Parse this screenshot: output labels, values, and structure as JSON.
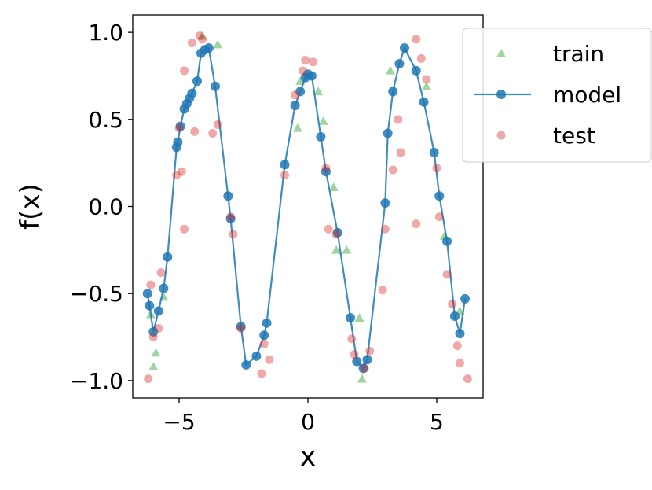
{
  "chart_data": {
    "type": "scatter",
    "title": "",
    "xlabel": "x",
    "ylabel": "f(x)",
    "xlim": [
      -6.8,
      6.8
    ],
    "ylim": [
      -1.1,
      1.1
    ],
    "xticks": [
      -5,
      0,
      5
    ],
    "xtick_labels": [
      "−5",
      "0",
      "5"
    ],
    "yticks": [
      1.0,
      0.5,
      0.0,
      -0.5,
      -1.0
    ],
    "ytick_labels": [
      "1.0",
      "0.5",
      "0.0",
      "−0.5",
      "−1.0"
    ],
    "grid": false,
    "legend_position": "top-right",
    "series": [
      {
        "name": "train",
        "kind": "scatter",
        "marker": "triangle",
        "color": "#2ca02c",
        "points": [
          [
            -6.1,
            -0.62
          ],
          [
            -5.9,
            -0.84
          ],
          [
            -6.0,
            -0.92
          ],
          [
            -5.6,
            -0.52
          ],
          [
            -4.1,
            0.98
          ],
          [
            -3.5,
            0.93
          ],
          [
            -0.4,
            0.45
          ],
          [
            -0.3,
            0.72
          ],
          [
            0.4,
            0.66
          ],
          [
            0.6,
            0.49
          ],
          [
            1.0,
            0.11
          ],
          [
            1.1,
            -0.25
          ],
          [
            1.5,
            -0.25
          ],
          [
            2.0,
            -0.64
          ],
          [
            2.1,
            -0.99
          ],
          [
            3.2,
            0.78
          ],
          [
            4.6,
            0.69
          ],
          [
            5.3,
            -0.17
          ],
          [
            5.9,
            -0.6
          ]
        ]
      },
      {
        "name": "model",
        "kind": "line",
        "marker": "circle",
        "color": "#1f77b4",
        "points": [
          [
            -6.23,
            -0.5
          ],
          [
            -6.15,
            -0.57
          ],
          [
            -6.0,
            -0.72
          ],
          [
            -5.8,
            -0.6
          ],
          [
            -5.6,
            -0.47
          ],
          [
            -5.45,
            -0.29
          ],
          [
            -5.1,
            0.34
          ],
          [
            -5.05,
            0.37
          ],
          [
            -4.95,
            0.46
          ],
          [
            -4.8,
            0.56
          ],
          [
            -4.7,
            0.59
          ],
          [
            -4.6,
            0.62
          ],
          [
            -4.5,
            0.65
          ],
          [
            -4.3,
            0.72
          ],
          [
            -4.15,
            0.88
          ],
          [
            -4.0,
            0.9
          ],
          [
            -3.85,
            0.91
          ],
          [
            -3.6,
            0.69
          ],
          [
            -3.1,
            0.06
          ],
          [
            -3.0,
            -0.07
          ],
          [
            -2.6,
            -0.69
          ],
          [
            -2.4,
            -0.91
          ],
          [
            -2.0,
            -0.86
          ],
          [
            -1.7,
            -0.74
          ],
          [
            -1.6,
            -0.67
          ],
          [
            -0.9,
            0.24
          ],
          [
            -0.5,
            0.58
          ],
          [
            -0.3,
            0.66
          ],
          [
            -0.1,
            0.74
          ],
          [
            0.0,
            0.76
          ],
          [
            0.15,
            0.75
          ],
          [
            0.5,
            0.4
          ],
          [
            0.7,
            0.2
          ],
          [
            1.15,
            -0.15
          ],
          [
            1.65,
            -0.64
          ],
          [
            1.9,
            -0.89
          ],
          [
            2.15,
            -0.93
          ],
          [
            2.3,
            -0.88
          ],
          [
            3.0,
            0.02
          ],
          [
            3.1,
            0.42
          ],
          [
            3.3,
            0.66
          ],
          [
            3.55,
            0.82
          ],
          [
            3.75,
            0.91
          ],
          [
            4.2,
            0.78
          ],
          [
            4.5,
            0.6
          ],
          [
            4.9,
            0.31
          ],
          [
            5.1,
            0.06
          ],
          [
            5.4,
            -0.2
          ],
          [
            5.7,
            -0.63
          ],
          [
            5.9,
            -0.73
          ],
          [
            6.1,
            -0.53
          ]
        ]
      },
      {
        "name": "test",
        "kind": "scatter",
        "marker": "circle",
        "color": "#d62728",
        "points": [
          [
            -6.2,
            -0.99
          ],
          [
            -6.1,
            -0.45
          ],
          [
            -6.0,
            -0.75
          ],
          [
            -5.8,
            -0.7
          ],
          [
            -5.7,
            -0.38
          ],
          [
            -5.1,
            0.18
          ],
          [
            -5.0,
            0.45
          ],
          [
            -4.9,
            0.2
          ],
          [
            -4.8,
            -0.13
          ],
          [
            -4.8,
            0.78
          ],
          [
            -4.5,
            0.94
          ],
          [
            -4.4,
            0.43
          ],
          [
            -4.2,
            0.98
          ],
          [
            -4.1,
            0.96
          ],
          [
            -3.7,
            0.42
          ],
          [
            -3.5,
            0.47
          ],
          [
            -3.0,
            -0.06
          ],
          [
            -2.9,
            -0.16
          ],
          [
            -2.6,
            -0.7
          ],
          [
            -1.8,
            -0.96
          ],
          [
            -1.7,
            -0.79
          ],
          [
            -1.5,
            -0.88
          ],
          [
            -0.9,
            0.18
          ],
          [
            -0.5,
            0.64
          ],
          [
            -0.2,
            0.78
          ],
          [
            -0.1,
            0.84
          ],
          [
            0.2,
            0.83
          ],
          [
            0.7,
            0.22
          ],
          [
            0.8,
            -0.13
          ],
          [
            1.1,
            -0.16
          ],
          [
            1.7,
            -0.76
          ],
          [
            1.8,
            -0.85
          ],
          [
            2.2,
            -0.93
          ],
          [
            2.4,
            -0.83
          ],
          [
            2.9,
            -0.48
          ],
          [
            3.0,
            -0.13
          ],
          [
            3.3,
            0.21
          ],
          [
            3.5,
            0.5
          ],
          [
            3.6,
            0.31
          ],
          [
            4.2,
            0.96
          ],
          [
            4.4,
            0.85
          ],
          [
            4.6,
            0.73
          ],
          [
            4.2,
            -0.1
          ],
          [
            5.0,
            0.22
          ],
          [
            5.1,
            -0.06
          ],
          [
            5.4,
            -0.39
          ],
          [
            5.6,
            -0.56
          ],
          [
            5.8,
            -0.8
          ],
          [
            5.9,
            -0.9
          ],
          [
            6.2,
            -0.99
          ]
        ]
      }
    ]
  }
}
